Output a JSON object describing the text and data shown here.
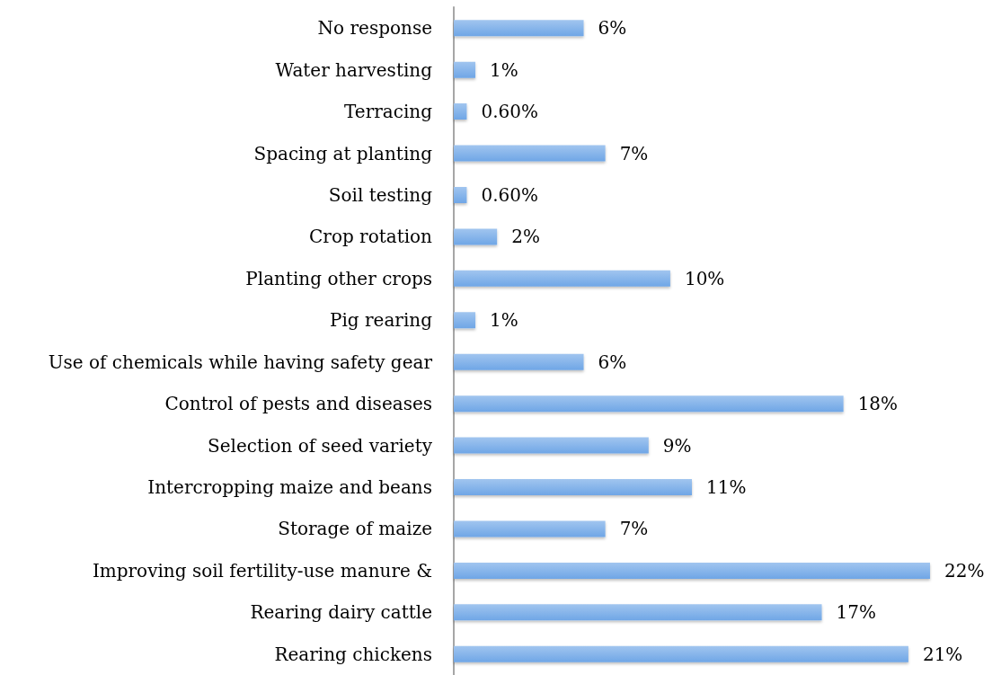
{
  "chart_data": {
    "type": "bar",
    "orientation": "horizontal",
    "categories": [
      "No response",
      "Water harvesting",
      "Terracing",
      "Spacing at planting",
      "Soil testing",
      "Crop rotation",
      "Planting other crops",
      "Pig rearing",
      "Use of chemicals while having safety gear",
      "Control of pests and diseases",
      "Selection of seed variety",
      "Intercropping maize and beans",
      "Storage of maize",
      "Improving soil fertility-use manure &",
      "Rearing dairy cattle",
      "Rearing chickens"
    ],
    "values": [
      6,
      1,
      0.6,
      7,
      0.6,
      2,
      10,
      1,
      6,
      18,
      9,
      11,
      7,
      22,
      17,
      21
    ],
    "value_labels": [
      "6%",
      "1%",
      "0.60%",
      "7%",
      "0.60%",
      "2%",
      "10%",
      "1%",
      "6%",
      "18%",
      "9%",
      "11%",
      "7%",
      "22%",
      "17%",
      "21%"
    ],
    "color": "#6fa6e6"
  }
}
